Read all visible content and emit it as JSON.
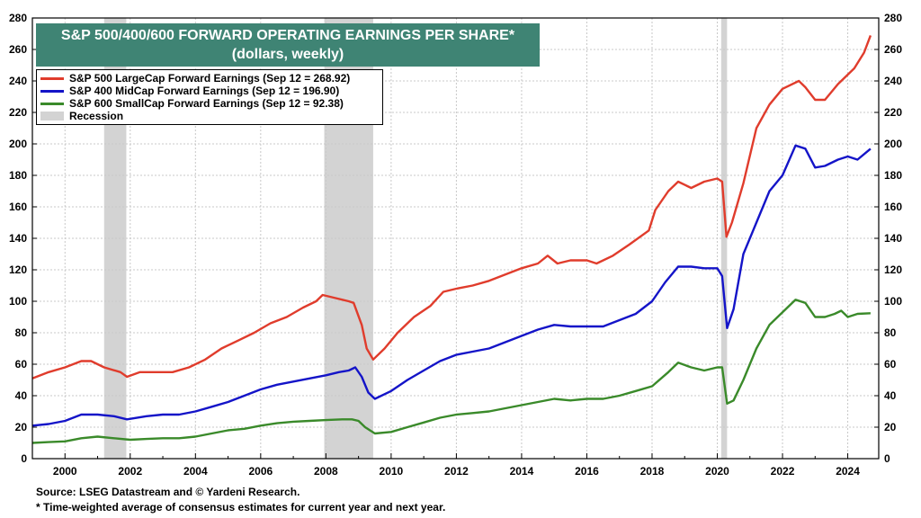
{
  "title": {
    "line1": "S&P 500/400/600 FORWARD OPERATING EARNINGS PER SHARE*",
    "line2": "(dollars, weekly)"
  },
  "legend": [
    {
      "label": "S&P 500 LargeCap Forward Earnings (Sep 12 = 268.92)",
      "color": "#e03c2c"
    },
    {
      "label": "S&P 400 MidCap Forward Earnings (Sep 12 = 196.90)",
      "color": "#1414c8"
    },
    {
      "label": "S&P 600 SmallCap Forward Earnings (Sep 12 = 92.38)",
      "color": "#3a8a2a"
    },
    {
      "label": "Recession",
      "color": "#d3d3d3"
    }
  ],
  "footnotes": {
    "source": "Source: LSEG Datastream and © Yardeni Research.",
    "note": "* Time-weighted average of consensus estimates for current year and next year."
  },
  "chart_data": {
    "type": "line",
    "xlim": [
      1999.0,
      2024.95
    ],
    "ylim": [
      0,
      280
    ],
    "y_ticks": [
      0,
      20,
      40,
      60,
      80,
      100,
      120,
      140,
      160,
      180,
      200,
      220,
      240,
      260,
      280
    ],
    "x_ticks": [
      2000,
      2002,
      2004,
      2006,
      2008,
      2010,
      2012,
      2014,
      2016,
      2018,
      2020,
      2022,
      2024
    ],
    "grid": true,
    "legend_position": "top-left",
    "recessions": [
      [
        2001.2,
        2001.88
      ],
      [
        2007.95,
        2009.45
      ],
      [
        2020.12,
        2020.3
      ]
    ],
    "series": [
      {
        "name": "S&P 500 LargeCap Forward Earnings (Sep 12 = 268.92)",
        "color": "#e03c2c",
        "x": [
          1999.0,
          1999.5,
          2000.0,
          2000.5,
          2000.8,
          2001.2,
          2001.7,
          2001.9,
          2002.3,
          2002.8,
          2003.3,
          2003.8,
          2004.3,
          2004.8,
          2005.3,
          2005.8,
          2006.3,
          2006.8,
          2007.3,
          2007.7,
          2007.9,
          2008.3,
          2008.7,
          2008.85,
          2009.1,
          2009.25,
          2009.45,
          2009.8,
          2010.2,
          2010.7,
          2011.2,
          2011.6,
          2012.0,
          2012.5,
          2013.0,
          2013.5,
          2014.0,
          2014.5,
          2014.8,
          2015.1,
          2015.5,
          2016.0,
          2016.3,
          2016.8,
          2017.3,
          2017.9,
          2018.1,
          2018.5,
          2018.8,
          2019.2,
          2019.6,
          2020.0,
          2020.15,
          2020.28,
          2020.45,
          2020.8,
          2021.2,
          2021.6,
          2022.0,
          2022.5,
          2022.7,
          2023.0,
          2023.3,
          2023.7,
          2024.2,
          2024.5,
          2024.7
        ],
        "values": [
          51,
          55,
          58,
          62,
          62,
          58,
          55,
          52,
          55,
          55,
          55,
          58,
          63,
          70,
          75,
          80,
          86,
          90,
          96,
          100,
          104,
          102,
          100,
          99,
          85,
          70,
          63,
          70,
          80,
          90,
          97,
          106,
          108,
          110,
          113,
          117,
          121,
          124,
          129,
          124,
          126,
          126,
          124,
          129,
          136,
          145,
          158,
          170,
          176,
          172,
          176,
          178,
          176,
          141,
          150,
          175,
          210,
          225,
          235,
          240,
          236,
          228,
          228,
          238,
          248,
          258,
          268.92
        ]
      },
      {
        "name": "S&P 400 MidCap Forward Earnings (Sep 12 = 196.90)",
        "color": "#1414c8",
        "x": [
          1999.0,
          1999.5,
          2000.0,
          2000.5,
          2001.0,
          2001.5,
          2001.9,
          2002.5,
          2003.0,
          2003.5,
          2004.0,
          2004.5,
          2005.0,
          2005.5,
          2006.0,
          2006.5,
          2007.0,
          2007.5,
          2008.0,
          2008.4,
          2008.7,
          2008.9,
          2009.1,
          2009.3,
          2009.5,
          2010.0,
          2010.5,
          2011.0,
          2011.5,
          2012.0,
          2012.5,
          2013.0,
          2013.5,
          2014.0,
          2014.5,
          2015.0,
          2015.5,
          2016.0,
          2016.5,
          2017.0,
          2017.5,
          2018.0,
          2018.4,
          2018.8,
          2019.2,
          2019.6,
          2020.0,
          2020.15,
          2020.3,
          2020.5,
          2020.8,
          2021.2,
          2021.6,
          2022.0,
          2022.4,
          2022.7,
          2023.0,
          2023.3,
          2023.7,
          2024.0,
          2024.3,
          2024.7
        ],
        "values": [
          21,
          22,
          24,
          28,
          28,
          27,
          25,
          27,
          28,
          28,
          30,
          33,
          36,
          40,
          44,
          47,
          49,
          51,
          53,
          55,
          56,
          58,
          52,
          42,
          38,
          43,
          50,
          56,
          62,
          66,
          68,
          70,
          74,
          78,
          82,
          85,
          84,
          84,
          84,
          88,
          92,
          100,
          112,
          122,
          122,
          121,
          121,
          116,
          83,
          95,
          130,
          150,
          170,
          180,
          199,
          197,
          185,
          186,
          190,
          192,
          190,
          196.9
        ]
      },
      {
        "name": "S&P 600 SmallCap Forward Earnings (Sep 12 = 92.38)",
        "color": "#3a8a2a",
        "x": [
          1999.0,
          1999.5,
          2000.0,
          2000.5,
          2001.0,
          2001.5,
          2002.0,
          2002.5,
          2003.0,
          2003.5,
          2004.0,
          2004.5,
          2005.0,
          2005.5,
          2006.0,
          2006.5,
          2007.0,
          2007.5,
          2008.0,
          2008.5,
          2008.8,
          2009.0,
          2009.2,
          2009.5,
          2010.0,
          2010.5,
          2011.0,
          2011.5,
          2012.0,
          2012.5,
          2013.0,
          2013.5,
          2014.0,
          2014.5,
          2015.0,
          2015.5,
          2016.0,
          2016.5,
          2017.0,
          2017.5,
          2018.0,
          2018.5,
          2018.8,
          2019.2,
          2019.6,
          2020.0,
          2020.15,
          2020.3,
          2020.5,
          2020.8,
          2021.2,
          2021.6,
          2022.0,
          2022.4,
          2022.7,
          2023.0,
          2023.3,
          2023.6,
          2023.8,
          2024.0,
          2024.3,
          2024.7
        ],
        "values": [
          10,
          10.5,
          11,
          13,
          14,
          13,
          12,
          12.5,
          13,
          13,
          14,
          16,
          18,
          19,
          21,
          22.5,
          23.5,
          24,
          24.5,
          25,
          25,
          24,
          20,
          16,
          17,
          20,
          23,
          26,
          28,
          29,
          30,
          32,
          34,
          36,
          38,
          37,
          38,
          38,
          40,
          43,
          46,
          55,
          61,
          58,
          56,
          58,
          58,
          35,
          37,
          50,
          70,
          85,
          93,
          101,
          99,
          90,
          90,
          92,
          94,
          90,
          92,
          92.38
        ]
      }
    ]
  }
}
